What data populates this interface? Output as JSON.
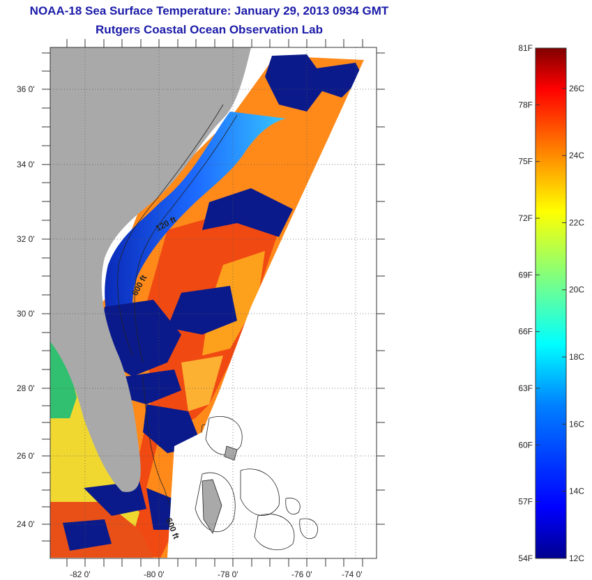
{
  "title": {
    "line1": "NOAA-18 Sea Surface Temperature:  January 29, 2013 0934 GMT",
    "line2": "Rutgers Coastal Ocean Observation Lab"
  },
  "map": {
    "lat_labels": [
      "36 0'",
      "34 0'",
      "32 0'",
      "30 0'",
      "28 0'",
      "26 0'",
      "24 0'"
    ],
    "lon_labels": [
      "-82 0'",
      "-80 0'",
      "-78 0'",
      "-76 0'",
      "-74 0'"
    ],
    "contour_labels": [
      "120 ft",
      "600 ft",
      "600 ft"
    ],
    "colors": {
      "land": "#a9a9a9",
      "cloud": "#0a1a8a",
      "coastal_cold": "#1040ff",
      "warm": "#ff7a10",
      "hot": "#e83010",
      "no_data": "#ffffff"
    }
  },
  "colorbar": {
    "fahrenheit": [
      "81F",
      "78F",
      "75F",
      "72F",
      "69F",
      "66F",
      "63F",
      "60F",
      "57F",
      "54F"
    ],
    "celsius": [
      "26C",
      "24C",
      "22C",
      "20C",
      "18C",
      "16C",
      "14C",
      "12C"
    ],
    "range_f": [
      54,
      81
    ],
    "range_c": [
      12,
      27.2
    ]
  }
}
